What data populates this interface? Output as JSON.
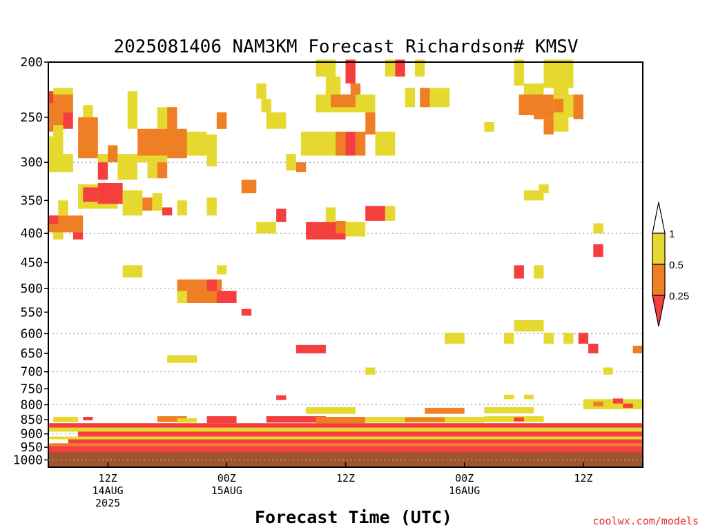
{
  "title": "2025081406 NAM3KM Forecast Richardson# KMSV",
  "xlabel": "Forecast Time (UTC)",
  "credit": "coolwx.com/models",
  "colors": {
    "lt_0_25": "#f53f3f",
    "0_25_to_0_5": "#ee7f24",
    "0_5_to_1": "#e5d92f",
    "ground": "#9d5530",
    "grid": "#a8a8a8"
  },
  "chart_data": {
    "type": "heatmap",
    "title": "2025081406 NAM3KM Forecast Richardson# KMSV",
    "xlabel": "Forecast Time (UTC)",
    "ylabel": "",
    "y_scale": "log (pressure, hPa), inverted",
    "ylim": [
      1030,
      200
    ],
    "y_ticks": [
      200,
      250,
      300,
      350,
      400,
      450,
      500,
      550,
      600,
      650,
      700,
      750,
      800,
      850,
      900,
      950,
      1000
    ],
    "gridlines_at": [
      300,
      400,
      500,
      600,
      700,
      800,
      900,
      1000
    ],
    "x_range": [
      "14AUG 06Z",
      "16AUG 18Z"
    ],
    "x_ticks": [
      {
        "line1": "12Z",
        "line2": "14AUG",
        "line3": "2025",
        "hour": 6
      },
      {
        "line1": "00Z",
        "line2": "15AUG",
        "line3": "",
        "hour": 18
      },
      {
        "line1": "12Z",
        "line2": "",
        "line3": "",
        "hour": 30
      },
      {
        "line1": "00Z",
        "line2": "16AUG",
        "line3": "",
        "hour": 42
      },
      {
        "line1": "12Z",
        "line2": "",
        "line3": "",
        "hour": 54
      }
    ],
    "colorbar": {
      "labels": [
        "1",
        "0.5",
        "0.25"
      ],
      "bins": [
        "> 1",
        "0.5 - 1",
        "0.25 - 0.5",
        "< 0.25"
      ]
    },
    "ground_level_hPa": 970,
    "class_key": {
      "r": "< 0.25",
      "o": "0.25 - 0.5",
      "y": "0.5 - 1"
    },
    "cells_note": "hour = forecast hour from 14AUG 06Z; p1/p2 = pressure bounds in hPa",
    "cells": [
      {
        "h0": 0,
        "h1": 1.5,
        "p1": 225,
        "p2": 265,
        "c": "o"
      },
      {
        "h0": 0,
        "h1": 0.5,
        "p1": 225,
        "p2": 236,
        "c": "r"
      },
      {
        "h0": 0.5,
        "h1": 2.5,
        "p1": 222,
        "p2": 228,
        "c": "y"
      },
      {
        "h0": 0.5,
        "h1": 2.5,
        "p1": 228,
        "p2": 245,
        "c": "o"
      },
      {
        "h0": 1.5,
        "h1": 2.5,
        "p1": 245,
        "p2": 262,
        "c": "r"
      },
      {
        "h0": 0.5,
        "h1": 1.5,
        "p1": 258,
        "p2": 272,
        "c": "y"
      },
      {
        "h0": 0,
        "h1": 1.5,
        "p1": 270,
        "p2": 290,
        "c": "y"
      },
      {
        "h0": 0,
        "h1": 2.5,
        "p1": 290,
        "p2": 312,
        "c": "y"
      },
      {
        "h0": 3,
        "h1": 5,
        "p1": 250,
        "p2": 295,
        "c": "o"
      },
      {
        "h0": 3.5,
        "h1": 4.5,
        "p1": 238,
        "p2": 250,
        "c": "y"
      },
      {
        "h0": 5,
        "h1": 6,
        "p1": 290,
        "p2": 310,
        "c": "y"
      },
      {
        "h0": 5,
        "h1": 6,
        "p1": 300,
        "p2": 322,
        "c": "r"
      },
      {
        "h0": 6,
        "h1": 7,
        "p1": 280,
        "p2": 300,
        "c": "o"
      },
      {
        "h0": 7,
        "h1": 9,
        "p1": 290,
        "p2": 322,
        "c": "y"
      },
      {
        "h0": 8,
        "h1": 9,
        "p1": 225,
        "p2": 262,
        "c": "y"
      },
      {
        "h0": 9,
        "h1": 14,
        "p1": 262,
        "p2": 295,
        "c": "o"
      },
      {
        "h0": 9,
        "h1": 12,
        "p1": 292,
        "p2": 300,
        "c": "y"
      },
      {
        "h0": 10,
        "h1": 11,
        "p1": 300,
        "p2": 320,
        "c": "y"
      },
      {
        "h0": 11,
        "h1": 12,
        "p1": 300,
        "p2": 320,
        "c": "o"
      },
      {
        "h0": 11,
        "h1": 13,
        "p1": 240,
        "p2": 262,
        "c": "y"
      },
      {
        "h0": 12,
        "h1": 13,
        "p1": 240,
        "p2": 292,
        "c": "o"
      },
      {
        "h0": 14,
        "h1": 16,
        "p1": 265,
        "p2": 292,
        "c": "y"
      },
      {
        "h0": 16,
        "h1": 17,
        "p1": 268,
        "p2": 305,
        "c": "y"
      },
      {
        "h0": 17,
        "h1": 18,
        "p1": 245,
        "p2": 262,
        "c": "o"
      },
      {
        "h0": 3,
        "h1": 7,
        "p1": 328,
        "p2": 362,
        "c": "y"
      },
      {
        "h0": 3.5,
        "h1": 5,
        "p1": 332,
        "p2": 352,
        "c": "r"
      },
      {
        "h0": 5,
        "h1": 7.5,
        "p1": 326,
        "p2": 355,
        "c": "r"
      },
      {
        "h0": 7.5,
        "h1": 9.5,
        "p1": 336,
        "p2": 372,
        "c": "y"
      },
      {
        "h0": 9.5,
        "h1": 10.5,
        "p1": 346,
        "p2": 365,
        "c": "o"
      },
      {
        "h0": 10.5,
        "h1": 11.5,
        "p1": 340,
        "p2": 365,
        "c": "y"
      },
      {
        "h0": 11.5,
        "h1": 12.5,
        "p1": 360,
        "p2": 372,
        "c": "r"
      },
      {
        "h0": 13,
        "h1": 14,
        "p1": 350,
        "p2": 372,
        "c": "y"
      },
      {
        "h0": 1,
        "h1": 2,
        "p1": 350,
        "p2": 372,
        "c": "y"
      },
      {
        "h0": 0,
        "h1": 3.5,
        "p1": 372,
        "p2": 398,
        "c": "o"
      },
      {
        "h0": 0,
        "h1": 1,
        "p1": 372,
        "p2": 385,
        "c": "r"
      },
      {
        "h0": 0.5,
        "h1": 1.5,
        "p1": 398,
        "p2": 410,
        "c": "y"
      },
      {
        "h0": 2.5,
        "h1": 3.5,
        "p1": 398,
        "p2": 410,
        "c": "r"
      },
      {
        "h0": 16,
        "h1": 17,
        "p1": 346,
        "p2": 372,
        "c": "y"
      },
      {
        "h0": 21,
        "h1": 22,
        "p1": 218,
        "p2": 232,
        "c": "y"
      },
      {
        "h0": 21.5,
        "h1": 22.5,
        "p1": 232,
        "p2": 245,
        "c": "y"
      },
      {
        "h0": 17,
        "h1": 18,
        "p1": 250,
        "p2": 262,
        "c": "o"
      },
      {
        "h0": 19.5,
        "h1": 21,
        "p1": 322,
        "p2": 340,
        "c": "o"
      },
      {
        "h0": 22,
        "h1": 24,
        "p1": 245,
        "p2": 262,
        "c": "y"
      },
      {
        "h0": 21,
        "h1": 23,
        "p1": 382,
        "p2": 400,
        "c": "y"
      },
      {
        "h0": 23,
        "h1": 24,
        "p1": 362,
        "p2": 382,
        "c": "r"
      },
      {
        "h0": 24,
        "h1": 25,
        "p1": 290,
        "p2": 310,
        "c": "y"
      },
      {
        "h0": 25,
        "h1": 26,
        "p1": 300,
        "p2": 312,
        "c": "o"
      },
      {
        "h0": 27,
        "h1": 29,
        "p1": 198,
        "p2": 212,
        "c": "y"
      },
      {
        "h0": 28,
        "h1": 29.5,
        "p1": 212,
        "p2": 228,
        "c": "y"
      },
      {
        "h0": 27,
        "h1": 31.5,
        "p1": 228,
        "p2": 245,
        "c": "y"
      },
      {
        "h0": 28.5,
        "h1": 31,
        "p1": 228,
        "p2": 240,
        "c": "o"
      },
      {
        "h0": 30,
        "h1": 31,
        "p1": 198,
        "p2": 218,
        "c": "r"
      },
      {
        "h0": 30.5,
        "h1": 31.5,
        "p1": 218,
        "p2": 228,
        "c": "o"
      },
      {
        "h0": 31.5,
        "h1": 33,
        "p1": 228,
        "p2": 245,
        "c": "y"
      },
      {
        "h0": 32,
        "h1": 33,
        "p1": 245,
        "p2": 268,
        "c": "o"
      },
      {
        "h0": 33,
        "h1": 35,
        "p1": 265,
        "p2": 292,
        "c": "y"
      },
      {
        "h0": 34,
        "h1": 35,
        "p1": 198,
        "p2": 212,
        "c": "y"
      },
      {
        "h0": 35,
        "h1": 36,
        "p1": 198,
        "p2": 212,
        "c": "r"
      },
      {
        "h0": 37,
        "h1": 38,
        "p1": 198,
        "p2": 212,
        "c": "y"
      },
      {
        "h0": 36,
        "h1": 37,
        "p1": 222,
        "p2": 240,
        "c": "y"
      },
      {
        "h0": 37.5,
        "h1": 38.5,
        "p1": 222,
        "p2": 240,
        "c": "o"
      },
      {
        "h0": 38.5,
        "h1": 40.5,
        "p1": 222,
        "p2": 240,
        "c": "y"
      },
      {
        "h0": 25.5,
        "h1": 27,
        "p1": 265,
        "p2": 292,
        "c": "y"
      },
      {
        "h0": 27,
        "h1": 30,
        "p1": 265,
        "p2": 292,
        "c": "y"
      },
      {
        "h0": 29,
        "h1": 30,
        "p1": 265,
        "p2": 292,
        "c": "o"
      },
      {
        "h0": 30,
        "h1": 31,
        "p1": 265,
        "p2": 292,
        "c": "r"
      },
      {
        "h0": 31,
        "h1": 32,
        "p1": 265,
        "p2": 292,
        "c": "o"
      },
      {
        "h0": 26,
        "h1": 30,
        "p1": 382,
        "p2": 410,
        "c": "r"
      },
      {
        "h0": 28,
        "h1": 29,
        "p1": 360,
        "p2": 382,
        "c": "y"
      },
      {
        "h0": 29,
        "h1": 30,
        "p1": 380,
        "p2": 400,
        "c": "o"
      },
      {
        "h0": 30,
        "h1": 32,
        "p1": 382,
        "p2": 405,
        "c": "y"
      },
      {
        "h0": 32,
        "h1": 34,
        "p1": 358,
        "p2": 380,
        "c": "r"
      },
      {
        "h0": 34,
        "h1": 35,
        "p1": 358,
        "p2": 380,
        "c": "y"
      },
      {
        "h0": 47,
        "h1": 48,
        "p1": 198,
        "p2": 220,
        "c": "y"
      },
      {
        "h0": 48,
        "h1": 50,
        "p1": 218,
        "p2": 228,
        "c": "y"
      },
      {
        "h0": 47.5,
        "h1": 51,
        "p1": 228,
        "p2": 248,
        "c": "o"
      },
      {
        "h0": 49,
        "h1": 51,
        "p1": 240,
        "p2": 252,
        "c": "o"
      },
      {
        "h0": 50,
        "h1": 51,
        "p1": 252,
        "p2": 268,
        "c": "o"
      },
      {
        "h0": 50,
        "h1": 53,
        "p1": 198,
        "p2": 222,
        "c": "y"
      },
      {
        "h0": 51,
        "h1": 52.5,
        "p1": 222,
        "p2": 265,
        "c": "y"
      },
      {
        "h0": 51,
        "h1": 52,
        "p1": 232,
        "p2": 245,
        "c": "o"
      },
      {
        "h0": 52,
        "h1": 53,
        "p1": 228,
        "p2": 250,
        "c": "y"
      },
      {
        "h0": 53,
        "h1": 54,
        "p1": 228,
        "p2": 252,
        "c": "o"
      },
      {
        "h0": 44,
        "h1": 45,
        "p1": 255,
        "p2": 265,
        "c": "y"
      },
      {
        "h0": 48,
        "h1": 50,
        "p1": 336,
        "p2": 350,
        "c": "y"
      },
      {
        "h0": 49.5,
        "h1": 50.5,
        "p1": 328,
        "p2": 340,
        "c": "y"
      },
      {
        "h0": 55,
        "h1": 56,
        "p1": 384,
        "p2": 400,
        "c": "y"
      },
      {
        "h0": 55,
        "h1": 56,
        "p1": 418,
        "p2": 440,
        "c": "r"
      },
      {
        "h0": 47,
        "h1": 48,
        "p1": 455,
        "p2": 480,
        "c": "r"
      },
      {
        "h0": 49,
        "h1": 50,
        "p1": 455,
        "p2": 480,
        "c": "y"
      },
      {
        "h0": 7.5,
        "h1": 9.5,
        "p1": 455,
        "p2": 478,
        "c": "y"
      },
      {
        "h0": 17,
        "h1": 18,
        "p1": 455,
        "p2": 472,
        "c": "y"
      },
      {
        "h0": 13,
        "h1": 17.5,
        "p1": 482,
        "p2": 530,
        "c": "o"
      },
      {
        "h0": 16,
        "h1": 17,
        "p1": 482,
        "p2": 505,
        "c": "r"
      },
      {
        "h0": 17,
        "h1": 19,
        "p1": 505,
        "p2": 530,
        "c": "r"
      },
      {
        "h0": 13,
        "h1": 14,
        "p1": 505,
        "p2": 530,
        "c": "y"
      },
      {
        "h0": 19.5,
        "h1": 20.5,
        "p1": 543,
        "p2": 558,
        "c": "r"
      },
      {
        "h0": 47,
        "h1": 50,
        "p1": 568,
        "p2": 595,
        "c": "y"
      },
      {
        "h0": 40,
        "h1": 42,
        "p1": 598,
        "p2": 625,
        "c": "y"
      },
      {
        "h0": 46,
        "h1": 47,
        "p1": 598,
        "p2": 625,
        "c": "y"
      },
      {
        "h0": 52,
        "h1": 53,
        "p1": 598,
        "p2": 625,
        "c": "y"
      },
      {
        "h0": 53.5,
        "h1": 54.5,
        "p1": 598,
        "p2": 625,
        "c": "r"
      },
      {
        "h0": 54.5,
        "h1": 55.5,
        "p1": 625,
        "p2": 650,
        "c": "r"
      },
      {
        "h0": 50,
        "h1": 51,
        "p1": 598,
        "p2": 625,
        "c": "y"
      },
      {
        "h0": 25,
        "h1": 28,
        "p1": 628,
        "p2": 650,
        "c": "r"
      },
      {
        "h0": 12,
        "h1": 15,
        "p1": 655,
        "p2": 675,
        "c": "y"
      },
      {
        "h0": 32,
        "h1": 33,
        "p1": 688,
        "p2": 708,
        "c": "y"
      },
      {
        "h0": 56,
        "h1": 57,
        "p1": 688,
        "p2": 708,
        "c": "y"
      },
      {
        "h0": 59,
        "h1": 60,
        "p1": 630,
        "p2": 650,
        "c": "o"
      },
      {
        "h0": 23,
        "h1": 24,
        "p1": 770,
        "p2": 785,
        "c": "r"
      },
      {
        "h0": 46,
        "h1": 47,
        "p1": 768,
        "p2": 782,
        "c": "y"
      },
      {
        "h0": 48,
        "h1": 49,
        "p1": 768,
        "p2": 782,
        "c": "y"
      },
      {
        "h0": 54,
        "h1": 60,
        "p1": 782,
        "p2": 815,
        "c": "y"
      },
      {
        "h0": 55,
        "h1": 56,
        "p1": 790,
        "p2": 805,
        "c": "o"
      },
      {
        "h0": 57,
        "h1": 58,
        "p1": 780,
        "p2": 796,
        "c": "r"
      },
      {
        "h0": 58,
        "h1": 59,
        "p1": 796,
        "p2": 810,
        "c": "r"
      },
      {
        "h0": 44,
        "h1": 49,
        "p1": 808,
        "p2": 828,
        "c": "y"
      },
      {
        "h0": 26,
        "h1": 31,
        "p1": 808,
        "p2": 830,
        "c": "y"
      },
      {
        "h0": 38,
        "h1": 42,
        "p1": 810,
        "p2": 830,
        "c": "o"
      },
      {
        "h0": 0.5,
        "h1": 3,
        "p1": 840,
        "p2": 858,
        "c": "y"
      },
      {
        "h0": 3.5,
        "h1": 4.5,
        "p1": 840,
        "p2": 852,
        "c": "r"
      },
      {
        "h0": 11,
        "h1": 14,
        "p1": 838,
        "p2": 858,
        "c": "o"
      },
      {
        "h0": 13,
        "h1": 15,
        "p1": 845,
        "p2": 860,
        "c": "y"
      },
      {
        "h0": 16,
        "h1": 19,
        "p1": 838,
        "p2": 862,
        "c": "r"
      },
      {
        "h0": 22,
        "h1": 28,
        "p1": 838,
        "p2": 860,
        "c": "r"
      },
      {
        "h0": 27,
        "h1": 32,
        "p1": 840,
        "p2": 862,
        "c": "o"
      },
      {
        "h0": 32,
        "h1": 44,
        "p1": 840,
        "p2": 860,
        "c": "y"
      },
      {
        "h0": 36,
        "h1": 40,
        "p1": 842,
        "p2": 858,
        "c": "o"
      },
      {
        "h0": 44,
        "h1": 50,
        "p1": 838,
        "p2": 858,
        "c": "y"
      },
      {
        "h0": 47,
        "h1": 48,
        "p1": 842,
        "p2": 856,
        "c": "r"
      },
      {
        "h0": 0,
        "h1": 60,
        "p1": 862,
        "p2": 878,
        "c": "r"
      },
      {
        "h0": 0,
        "h1": 60,
        "p1": 878,
        "p2": 892,
        "c": "y"
      },
      {
        "h0": 3,
        "h1": 60,
        "p1": 892,
        "p2": 910,
        "c": "r"
      },
      {
        "h0": 0,
        "h1": 60,
        "p1": 910,
        "p2": 920,
        "c": "y"
      },
      {
        "h0": 2,
        "h1": 60,
        "p1": 920,
        "p2": 935,
        "c": "r"
      },
      {
        "h0": 0,
        "h1": 60,
        "p1": 935,
        "p2": 945,
        "c": "o"
      },
      {
        "h0": 0,
        "h1": 60,
        "p1": 945,
        "p2": 970,
        "c": "r"
      }
    ]
  }
}
